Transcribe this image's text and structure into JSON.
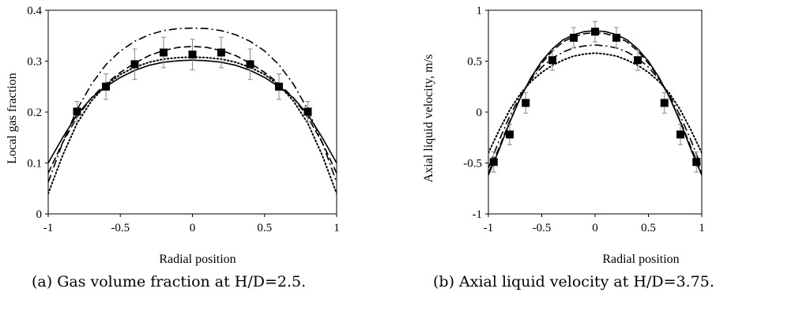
{
  "captions": {
    "a": "(a) Gas volume fraction at H/D=2.5.",
    "b": "(b) Axial liquid velocity at H/D=3.75."
  },
  "chart_data": [
    {
      "type": "line",
      "xlabel": "Radial position",
      "ylabel": "Local gas fraction",
      "xlim": [
        -1,
        1
      ],
      "ylim": [
        0,
        0.4
      ],
      "xticks": [
        -1,
        -0.5,
        0,
        0.5,
        1
      ],
      "xtick_labels": [
        "-1",
        "-0.5",
        "0",
        "0.5",
        "1"
      ],
      "yticks": [
        0,
        0.1,
        0.2,
        0.3,
        0.4
      ],
      "ytick_labels": [
        "0",
        "0.1",
        "0.2",
        "0.3",
        "0.4"
      ],
      "grid": false,
      "experimental": {
        "marker": "square",
        "x": [
          -0.8,
          -0.6,
          -0.4,
          -0.2,
          0,
          0.2,
          0.4,
          0.6,
          0.8
        ],
        "y": [
          0.201,
          0.25,
          0.294,
          0.317,
          0.313,
          0.317,
          0.294,
          0.25,
          0.201
        ],
        "err": [
          0.02,
          0.025,
          0.03,
          0.03,
          0.03,
          0.03,
          0.03,
          0.025,
          0.02
        ]
      },
      "series": [
        {
          "style": "solid",
          "x": [
            -1,
            -0.9,
            -0.8,
            -0.7,
            -0.6,
            -0.5,
            -0.4,
            -0.3,
            -0.2,
            -0.1,
            0,
            0.1,
            0.2,
            0.3,
            0.4,
            0.5,
            0.6,
            0.7,
            0.8,
            0.9,
            1
          ],
          "y": [
            0.1,
            0.15,
            0.195,
            0.228,
            0.25,
            0.268,
            0.282,
            0.292,
            0.298,
            0.301,
            0.302,
            0.301,
            0.298,
            0.292,
            0.282,
            0.268,
            0.25,
            0.228,
            0.195,
            0.15,
            0.1
          ]
        },
        {
          "style": "dash",
          "x": [
            -1,
            -0.9,
            -0.8,
            -0.7,
            -0.6,
            -0.5,
            -0.4,
            -0.3,
            -0.2,
            -0.1,
            0,
            0.1,
            0.2,
            0.3,
            0.4,
            0.5,
            0.6,
            0.7,
            0.8,
            0.9,
            1
          ],
          "y": [
            0.08,
            0.14,
            0.19,
            0.228,
            0.256,
            0.278,
            0.296,
            0.311,
            0.321,
            0.327,
            0.329,
            0.327,
            0.321,
            0.311,
            0.296,
            0.278,
            0.256,
            0.228,
            0.19,
            0.14,
            0.08
          ]
        },
        {
          "style": "dashdot",
          "x": [
            -1,
            -0.9,
            -0.8,
            -0.7,
            -0.6,
            -0.5,
            -0.4,
            -0.3,
            -0.2,
            -0.1,
            0,
            0.1,
            0.2,
            0.3,
            0.4,
            0.5,
            0.6,
            0.7,
            0.8,
            0.9,
            1
          ],
          "y": [
            0.062,
            0.14,
            0.205,
            0.255,
            0.293,
            0.32,
            0.339,
            0.352,
            0.36,
            0.364,
            0.365,
            0.364,
            0.36,
            0.352,
            0.339,
            0.32,
            0.293,
            0.255,
            0.205,
            0.14,
            0.062
          ]
        },
        {
          "style": "dot",
          "x": [
            -1,
            -0.9,
            -0.8,
            -0.7,
            -0.6,
            -0.5,
            -0.4,
            -0.3,
            -0.2,
            -0.1,
            0,
            0.1,
            0.2,
            0.3,
            0.4,
            0.5,
            0.6,
            0.7,
            0.8,
            0.9,
            1
          ],
          "y": [
            0.04,
            0.115,
            0.178,
            0.222,
            0.253,
            0.274,
            0.288,
            0.298,
            0.304,
            0.307,
            0.308,
            0.307,
            0.304,
            0.298,
            0.288,
            0.274,
            0.253,
            0.222,
            0.178,
            0.115,
            0.04
          ]
        }
      ]
    },
    {
      "type": "line",
      "xlabel": "Radial position",
      "ylabel": "Axial liquid velocity, m/s",
      "xlim": [
        -1,
        1
      ],
      "ylim": [
        -1,
        1
      ],
      "xticks": [
        -1,
        -0.5,
        0,
        0.5,
        1
      ],
      "xtick_labels": [
        "-1",
        "-0.5",
        "0",
        "0.5",
        "1"
      ],
      "yticks": [
        -1,
        -0.5,
        0,
        0.5,
        1
      ],
      "ytick_labels": [
        "-1",
        "-0.5",
        "0",
        "0.5",
        "1"
      ],
      "grid": false,
      "experimental": {
        "marker": "square",
        "x": [
          -0.95,
          -0.8,
          -0.65,
          -0.4,
          -0.2,
          0,
          0.2,
          0.4,
          0.65,
          0.8,
          0.95
        ],
        "y": [
          -0.49,
          -0.22,
          0.09,
          0.51,
          0.73,
          0.79,
          0.73,
          0.51,
          0.09,
          -0.22,
          -0.49
        ],
        "err": [
          0.1,
          0.1,
          0.1,
          0.1,
          0.1,
          0.1,
          0.1,
          0.1,
          0.1,
          0.1,
          0.1
        ]
      },
      "series": [
        {
          "style": "solid",
          "x": [
            -1,
            -0.9,
            -0.8,
            -0.7,
            -0.6,
            -0.5,
            -0.4,
            -0.3,
            -0.2,
            -0.1,
            0,
            0.1,
            0.2,
            0.3,
            0.4,
            0.5,
            0.6,
            0.7,
            0.8,
            0.9,
            1
          ],
          "y": [
            -0.62,
            -0.37,
            -0.1,
            0.14,
            0.34,
            0.5,
            0.62,
            0.71,
            0.76,
            0.79,
            0.8,
            0.79,
            0.76,
            0.71,
            0.62,
            0.5,
            0.34,
            0.14,
            -0.1,
            -0.37,
            -0.62
          ]
        },
        {
          "style": "dash",
          "x": [
            -1,
            -0.9,
            -0.8,
            -0.7,
            -0.6,
            -0.5,
            -0.4,
            -0.3,
            -0.2,
            -0.1,
            0,
            0.1,
            0.2,
            0.3,
            0.4,
            0.5,
            0.6,
            0.7,
            0.8,
            0.9,
            1
          ],
          "y": [
            -0.6,
            -0.35,
            -0.09,
            0.14,
            0.33,
            0.48,
            0.6,
            0.69,
            0.74,
            0.77,
            0.78,
            0.77,
            0.74,
            0.69,
            0.6,
            0.48,
            0.33,
            0.14,
            -0.09,
            -0.35,
            -0.6
          ]
        },
        {
          "style": "dashdot",
          "x": [
            -1,
            -0.9,
            -0.8,
            -0.7,
            -0.6,
            -0.5,
            -0.4,
            -0.3,
            -0.2,
            -0.1,
            0,
            0.1,
            0.2,
            0.3,
            0.4,
            0.5,
            0.6,
            0.7,
            0.8,
            0.9,
            1
          ],
          "y": [
            -0.55,
            -0.28,
            -0.04,
            0.16,
            0.32,
            0.44,
            0.53,
            0.59,
            0.63,
            0.65,
            0.66,
            0.65,
            0.63,
            0.59,
            0.53,
            0.44,
            0.32,
            0.16,
            -0.04,
            -0.28,
            -0.55
          ]
        },
        {
          "style": "dot",
          "x": [
            -1,
            -0.9,
            -0.8,
            -0.7,
            -0.6,
            -0.5,
            -0.4,
            -0.3,
            -0.2,
            -0.1,
            0,
            0.1,
            0.2,
            0.3,
            0.4,
            0.5,
            0.6,
            0.7,
            0.8,
            0.9,
            1
          ],
          "y": [
            -0.4,
            -0.18,
            0.02,
            0.18,
            0.3,
            0.39,
            0.46,
            0.51,
            0.55,
            0.57,
            0.58,
            0.57,
            0.55,
            0.51,
            0.46,
            0.39,
            0.3,
            0.18,
            0.02,
            -0.18,
            -0.4
          ]
        }
      ]
    }
  ]
}
